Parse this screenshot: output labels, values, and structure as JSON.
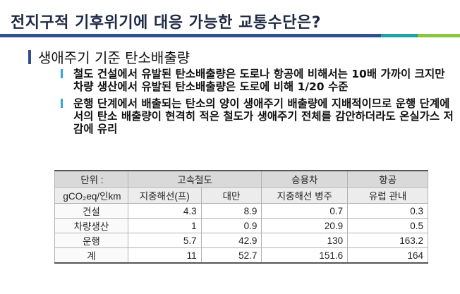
{
  "header": {
    "title": "전지구적 기후위기에 대응 가능한 교통수단은?"
  },
  "section": {
    "heading": "생애주기 기준 탄소배출량"
  },
  "bullets": [
    "철도 건설에서 유발된 탄소배출량은 도로나 항공에 비해서는 10배 가까이 크지만 차량 생산에서 유발된 탄소배출량은 도로에 비해 1/20 수준",
    "운행 단계에서 배출되는 탄소의 양이 생애주기 배출량에 지배적이므로 운행 단계에서의 탄소 배출량이 현격히 적은 철도가 생애주기 전체를 감안하더라도 온실가스 저감에 유리"
  ],
  "table": {
    "unit_label": "단위 :",
    "unit_value": "gCO₂eq/인km",
    "groups": [
      "고속철도",
      "승용차",
      "항공"
    ],
    "subheaders": [
      "지중해선(프)",
      "대만",
      "지중해선 병주",
      "유럽 관내"
    ],
    "rows": [
      {
        "label": "건설",
        "values": [
          "4.3",
          "8.9",
          "0.7",
          "0.3"
        ]
      },
      {
        "label": "차량생산",
        "values": [
          "1",
          "0.9",
          "20.9",
          "0.5"
        ]
      },
      {
        "label": "운행",
        "values": [
          "5.7",
          "42.9",
          "130",
          "163.2"
        ]
      },
      {
        "label": "계",
        "values": [
          "11",
          "52.7",
          "151.6",
          "164"
        ]
      }
    ]
  }
}
